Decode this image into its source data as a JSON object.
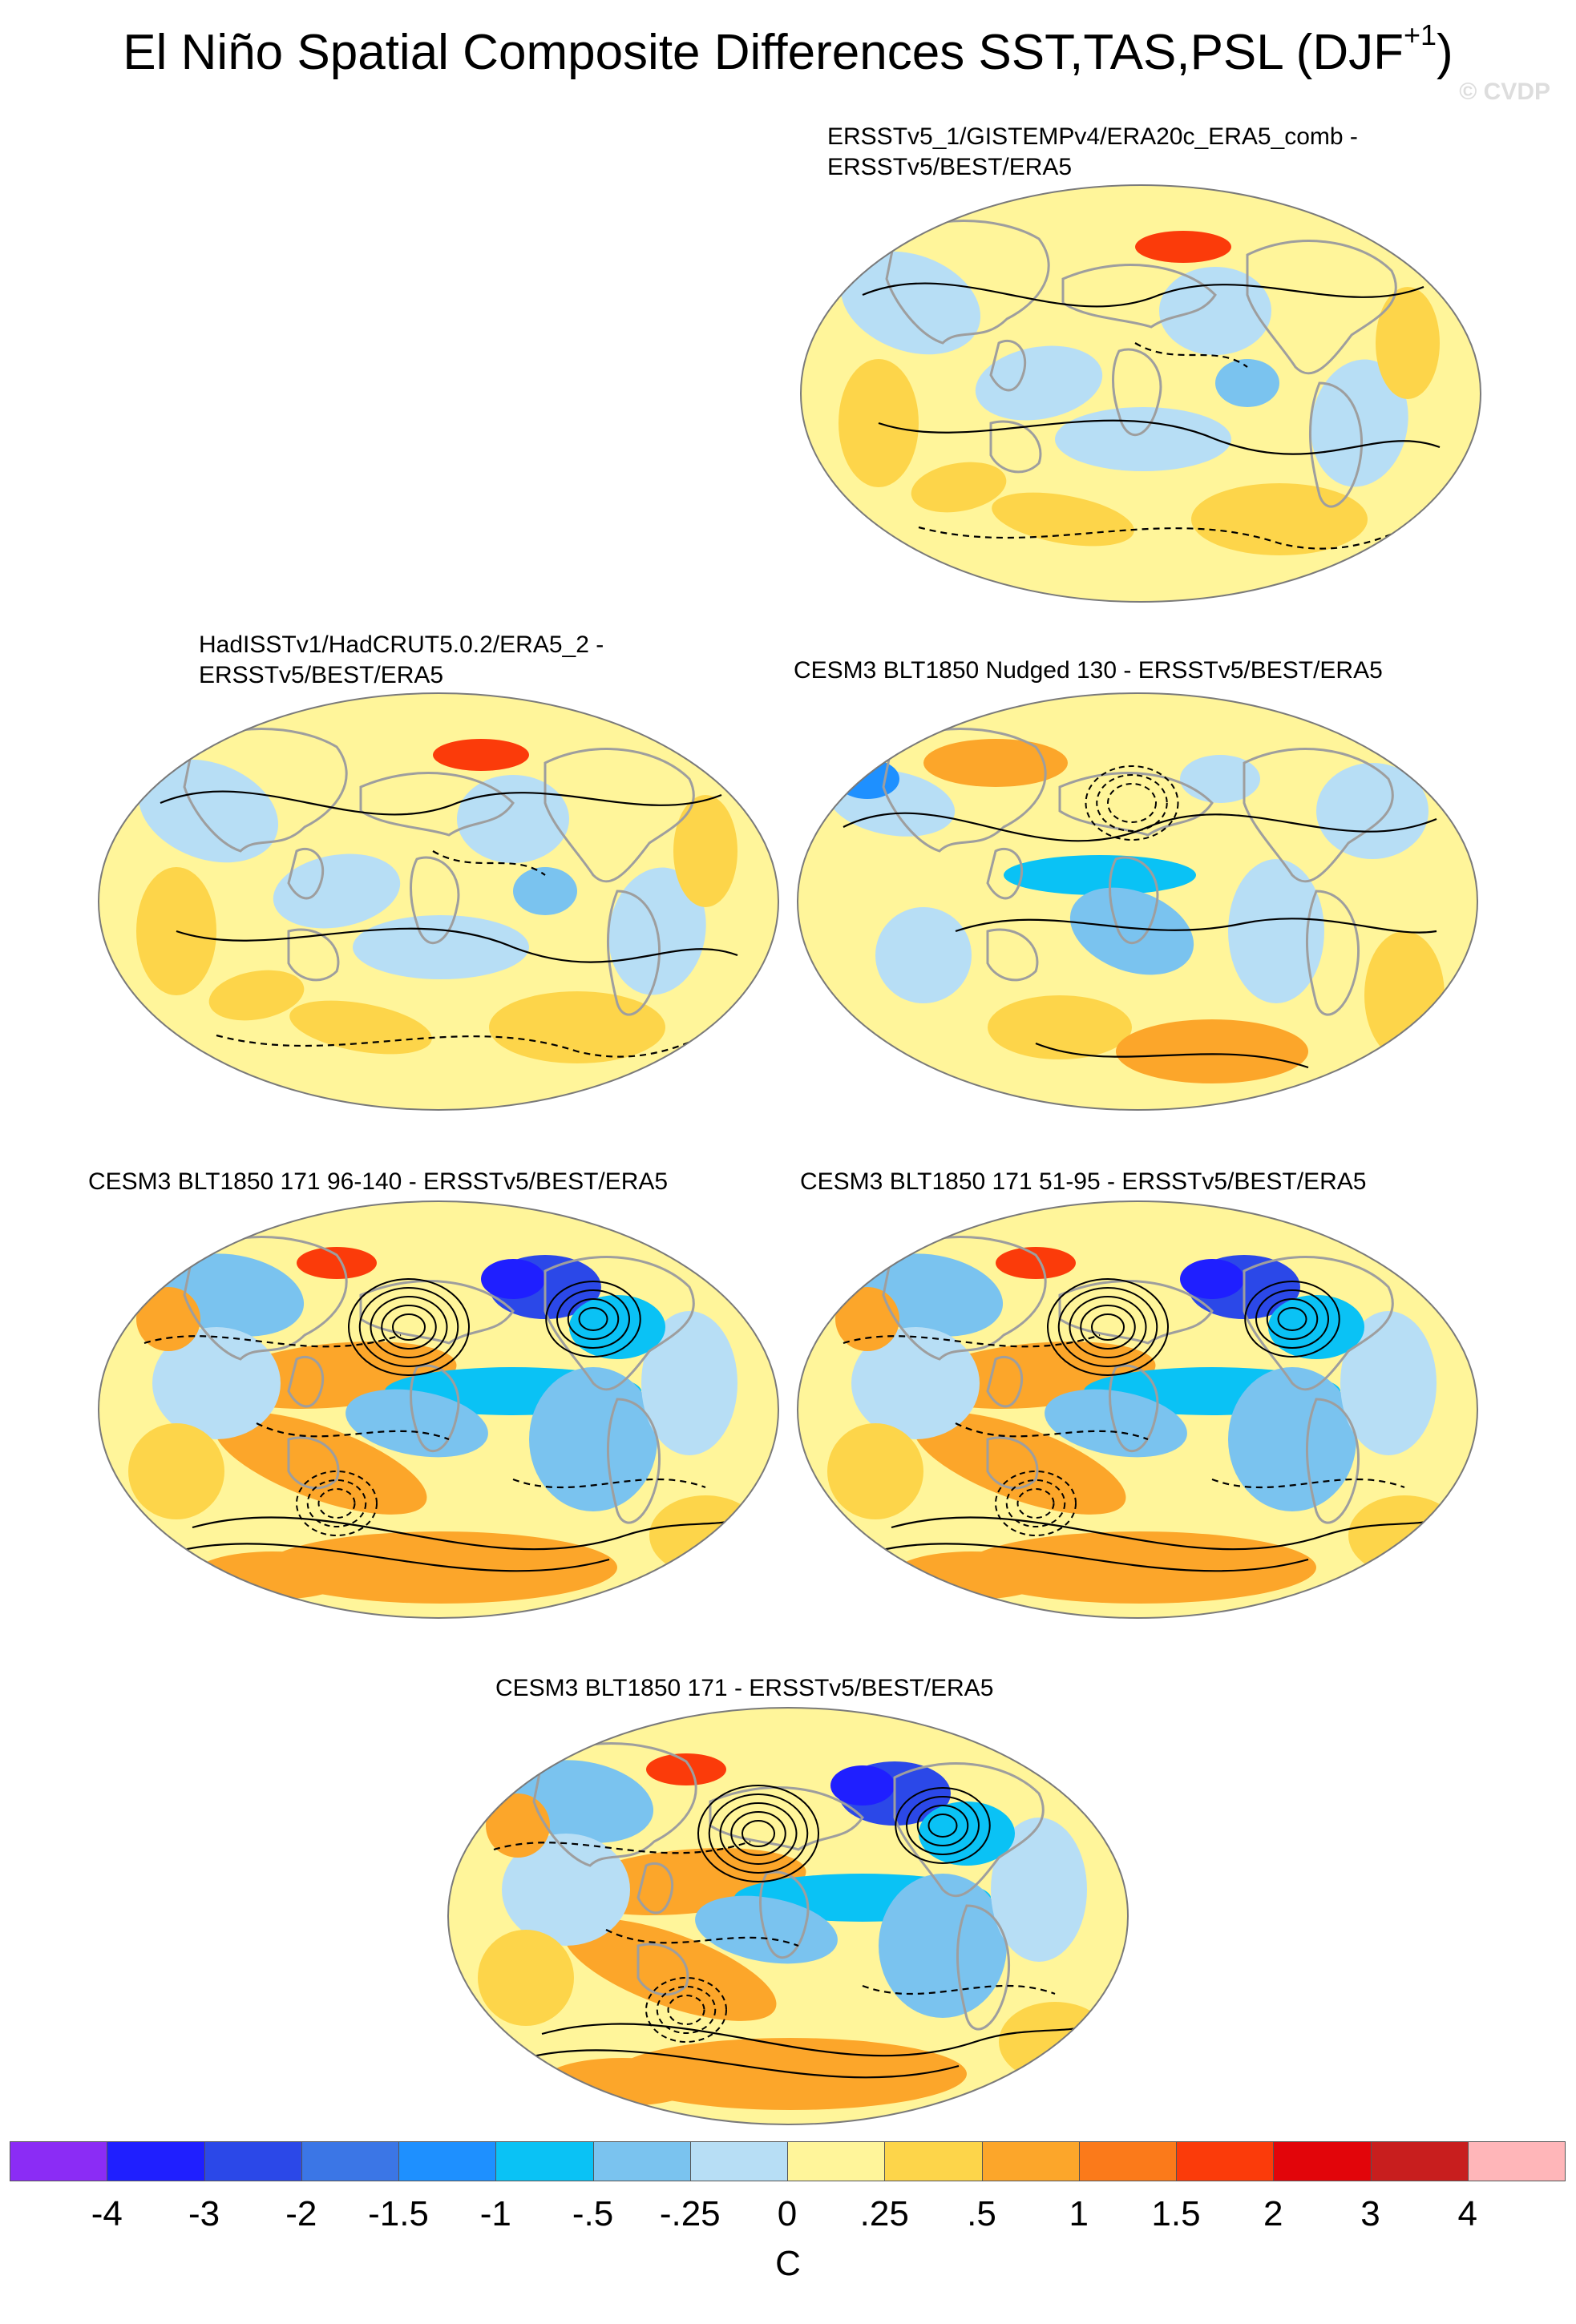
{
  "figure": {
    "title_main": "El Niño Spatial Composite Differences SST,TAS,PSL (DJF",
    "title_sup": "+1",
    "title_close": ")",
    "watermark": "© CVDP"
  },
  "panels": [
    {
      "id": "p1",
      "label_lines": [
        "ERSSTv5_1/GISTEMPv4/ERA20c_ERA5_comb -",
        "ERSSTv5/BEST/ERA5"
      ],
      "pattern": "obs_weak"
    },
    {
      "id": "p2",
      "label_lines": [
        "HadISSTv1/HadCRUT5.0.2/ERA5_2 -",
        "ERSSTv5/BEST/ERA5"
      ],
      "pattern": "obs_weak"
    },
    {
      "id": "p3",
      "label_lines": [
        "CESM3 BLT1850 Nudged 130 - ERSSTv5/BEST/ERA5"
      ],
      "pattern": "nudged"
    },
    {
      "id": "p4",
      "label_lines": [
        "CESM3 BLT1850 171 96-140 - ERSSTv5/BEST/ERA5"
      ],
      "pattern": "model_strong"
    },
    {
      "id": "p5",
      "label_lines": [
        "CESM3 BLT1850 171 51-95 - ERSSTv5/BEST/ERA5"
      ],
      "pattern": "model_strong"
    },
    {
      "id": "p6",
      "label_lines": [
        "CESM3 BLT1850 171 - ERSSTv5/BEST/ERA5"
      ],
      "pattern": "model_strong"
    }
  ],
  "colorbar": {
    "unit": "C",
    "tick_labels": [
      "-4",
      "-3",
      "-2",
      "-1.5",
      "-1",
      "-.5",
      "-.25",
      "0",
      ".25",
      ".5",
      "1",
      "1.5",
      "2",
      "3",
      "4"
    ],
    "colors": [
      "#8b2cf5",
      "#1f1fff",
      "#2b48e8",
      "#3b76e6",
      "#1e90ff",
      "#0ac2f5",
      "#7ac3ef",
      "#b7def5",
      "#fff59a",
      "#fdd54a",
      "#fca62a",
      "#fb7a1a",
      "#fb3b0a",
      "#e2050a",
      "#c81e1e",
      "#ffb6b9"
    ],
    "color_semantics": "16 bins: below -4, -4..-3, -3..-2, -2..-1.5, -1.5..-1, -1..-.5, -.5..-.25, -.25..0, 0...25, .25...5, .5..1, 1..1.5, 1.5..2, 2..3, 3..4, above 4"
  }
}
